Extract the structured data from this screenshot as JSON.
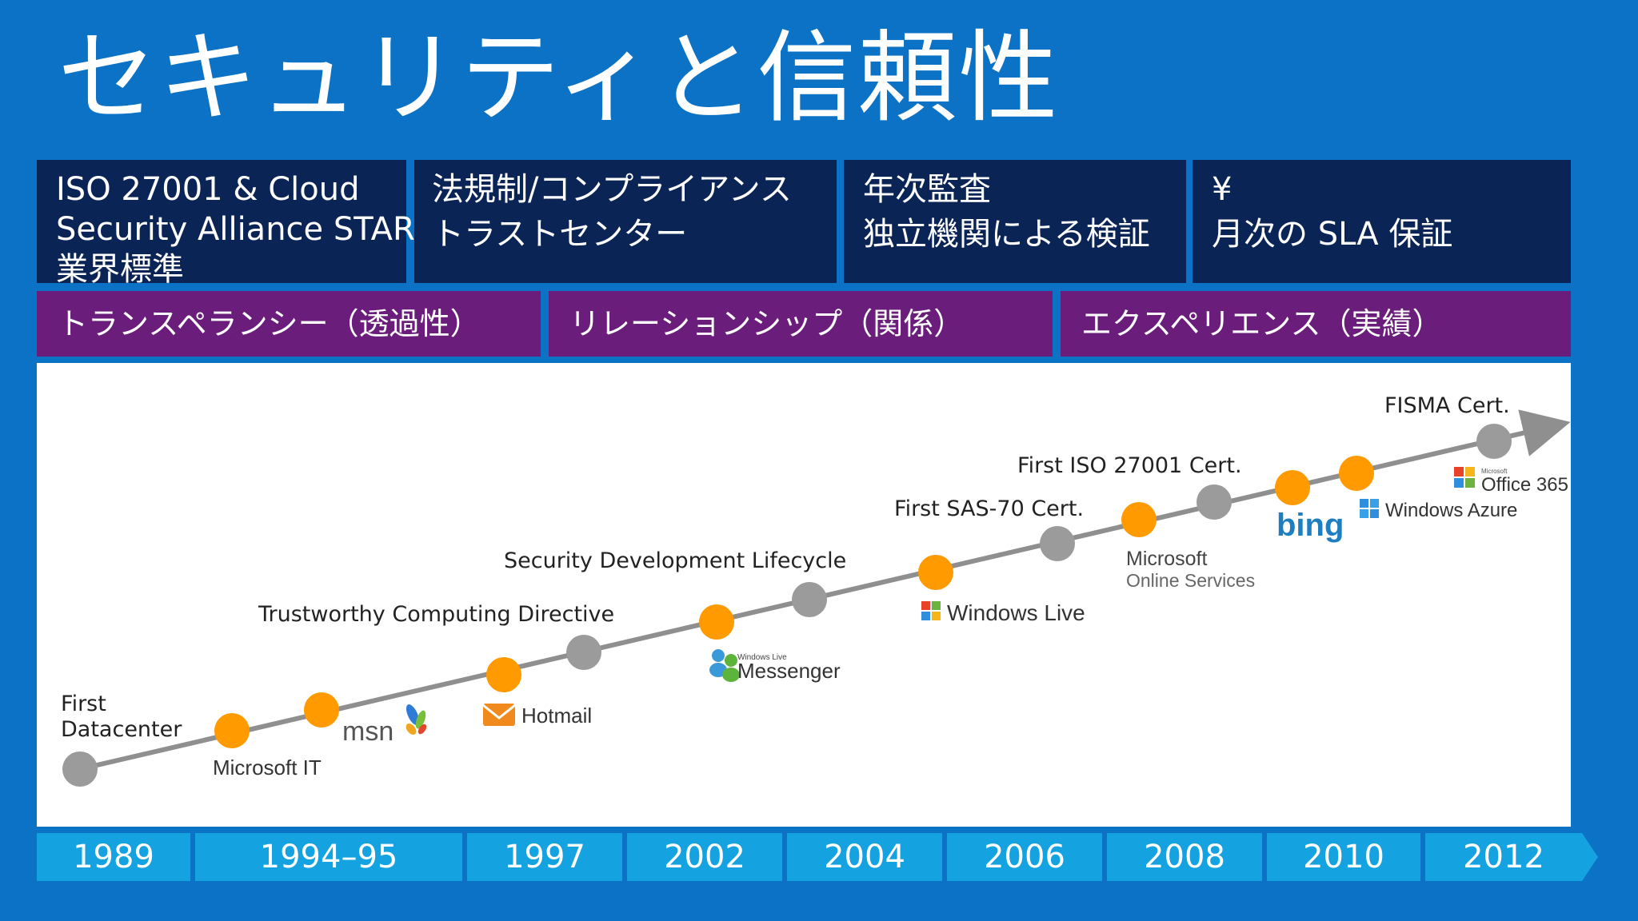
{
  "title": "セキュリティと信頼性",
  "pillars": [
    {
      "lines": [
        "ISO 27001 & Cloud",
        "Security Alliance STAR",
        "業界標準"
      ]
    },
    {
      "lines": [
        "法規制/コンプライアンス",
        "トラストセンター"
      ]
    },
    {
      "lines": [
        "年次監査",
        "独立機関による検証"
      ]
    },
    {
      "lines": [
        "¥",
        "月次の SLA 保証"
      ]
    }
  ],
  "themes": [
    "トランスペランシー（透過性）",
    "リレーションシップ（関係）",
    "エクスペリエンス（実績）"
  ],
  "milestones": {
    "first_datacenter": [
      "First",
      "Datacenter"
    ],
    "trustworthy": "Trustworthy Computing Directive",
    "sdl": "Security Development Lifecycle",
    "sas70": "First SAS-70 Cert.",
    "iso": "First ISO 27001 Cert.",
    "fisma": "FISMA Cert."
  },
  "logos": {
    "microsoft_it": "Microsoft IT",
    "msn": "msn",
    "hotmail": "Hotmail",
    "messenger_small": "Windows Live",
    "messenger": "Messenger",
    "windows_live": "Windows Live",
    "mos_1": "Microsoft",
    "mos_2": "Online Services",
    "bing": "bing",
    "azure": "Windows Azure",
    "office_small": "Microsoft",
    "office365": "Office 365"
  },
  "years": [
    "1989",
    "1994–95",
    "1997",
    "2002",
    "2004",
    "2006",
    "2008",
    "2010",
    "2012"
  ],
  "colors": {
    "background": "#0b72c6",
    "pillar": "#0b2456",
    "theme": "#6a1d7a",
    "year_bar": "#14a3e0",
    "dot_orange": "#ff9a00",
    "dot_gray": "#9b9b9b",
    "line": "#8f8f8f"
  }
}
